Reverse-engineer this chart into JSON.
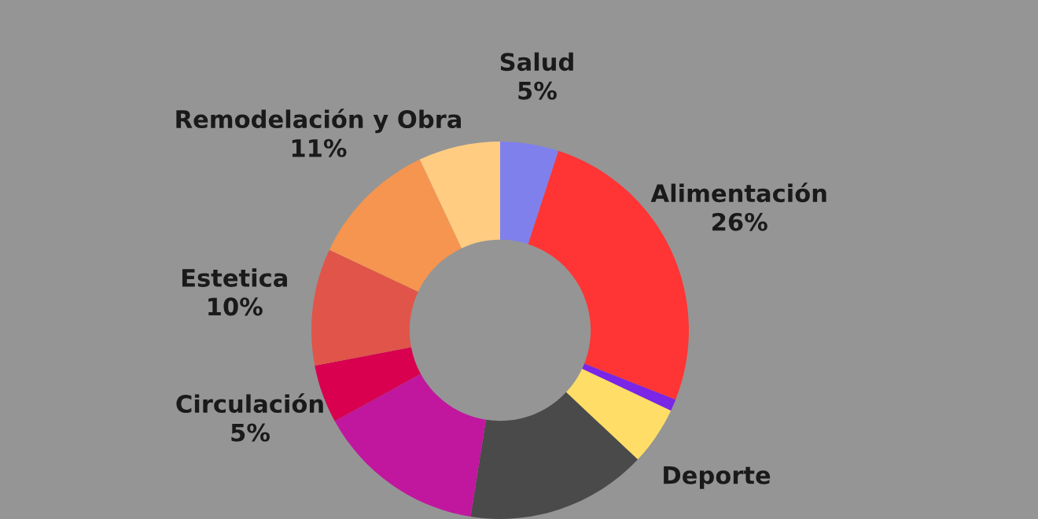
{
  "chart_data": {
    "type": "donut",
    "categories": [
      "Salud",
      "Alimentación",
      null,
      "Deporte",
      null,
      null,
      "Circulación",
      "Estetica",
      "Remodelación y Obra",
      null
    ],
    "values": [
      5,
      26,
      1,
      5,
      15.5,
      14.5,
      5,
      10,
      11,
      7
    ],
    "value_labels": [
      "5%",
      "26%",
      null,
      null,
      null,
      null,
      "5%",
      "10%",
      "11%",
      null
    ],
    "colors": [
      "#8080ec",
      "#ff3535",
      "#7b25e6",
      "#ffdd66",
      "#4a4a4a",
      "#c0179e",
      "#d8004f",
      "#e0544a",
      "#f5954f",
      "#ffcc82"
    ]
  }
}
